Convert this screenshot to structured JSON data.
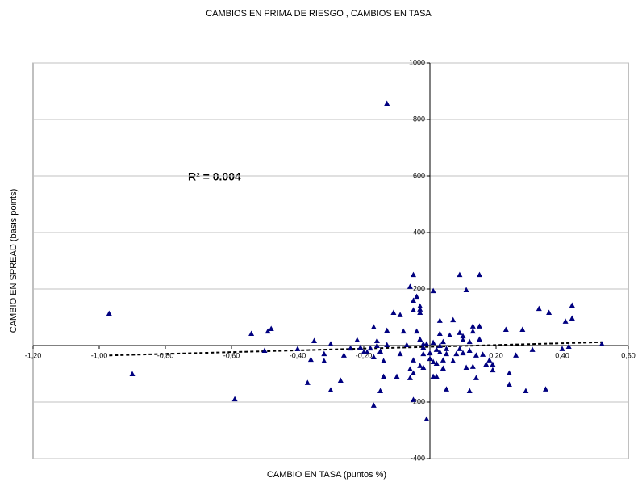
{
  "chart_data": {
    "type": "scatter",
    "title": "CAMBIOS EN PRIMA DE RIESGO , CAMBIOS EN TASA",
    "x_label": "CAMBIO EN TASA (puntos %)",
    "y_label": "CAMBIO EN SPREAD (basis points)",
    "annotation": "R² = 0.004",
    "color": "#000080",
    "grid": true,
    "xlim": [
      -1.2,
      0.6
    ],
    "ylim": [
      -400,
      1000
    ],
    "xticks": [
      {
        "value": -1.2,
        "label": "-1,20"
      },
      {
        "value": -1.0,
        "label": "-1,00"
      },
      {
        "value": -0.8,
        "label": "-0,80"
      },
      {
        "value": -0.6,
        "label": "-0,60"
      },
      {
        "value": -0.4,
        "label": "-0,40"
      },
      {
        "value": -0.2,
        "label": "-0,20"
      },
      {
        "value": 0.2,
        "label": "0,20"
      },
      {
        "value": 0.4,
        "label": "0,40"
      },
      {
        "value": 0.6,
        "label": "0,60"
      }
    ],
    "yticks": [
      1000,
      800,
      600,
      400,
      200,
      -200,
      -400
    ],
    "trendline": {
      "x": [
        -0.97,
        0.52
      ],
      "y": [
        -35,
        12
      ]
    },
    "x": [
      -0.97,
      -0.9,
      -0.59,
      -0.54,
      -0.5,
      -0.49,
      -0.48,
      -0.4,
      -0.36,
      -0.35,
      -0.37,
      -0.32,
      -0.32,
      -0.3,
      -0.3,
      -0.27,
      -0.26,
      -0.24,
      -0.22,
      -0.21,
      -0.2,
      -0.19,
      -0.18,
      -0.17,
      -0.17,
      -0.17,
      -0.16,
      -0.16,
      -0.15,
      -0.15,
      -0.14,
      -0.13,
      -0.13,
      -0.13,
      -0.14,
      -0.11,
      -0.1,
      -0.09,
      -0.09,
      -0.08,
      -0.07,
      -0.06,
      -0.05,
      -0.05,
      -0.05,
      -0.06,
      -0.05,
      -0.06,
      -0.05,
      -0.05,
      -0.04,
      -0.04,
      -0.03,
      -0.03,
      -0.03,
      -0.03,
      -0.03,
      -0.02,
      -0.02,
      -0.02,
      -0.02,
      -0.01,
      -0.01,
      0.0,
      0.0,
      0.01,
      0.01,
      0.01,
      0.01,
      0.02,
      0.02,
      0.02,
      0.03,
      0.03,
      0.03,
      0.03,
      0.04,
      0.04,
      0.04,
      0.05,
      0.05,
      0.05,
      0.06,
      0.07,
      0.07,
      0.08,
      0.09,
      0.09,
      0.09,
      0.1,
      0.1,
      0.1,
      0.11,
      0.11,
      0.12,
      0.12,
      0.12,
      0.13,
      0.13,
      0.13,
      0.14,
      0.14,
      0.15,
      0.15,
      0.15,
      0.16,
      0.17,
      0.18,
      0.19,
      0.19,
      0.23,
      0.24,
      0.24,
      0.26,
      0.28,
      0.29,
      0.31,
      0.33,
      0.35,
      0.36,
      0.4,
      0.41,
      0.42,
      0.43,
      0.43,
      0.52
    ],
    "values": [
      114,
      -100,
      -189,
      43,
      -17,
      51,
      60,
      -11,
      -49,
      17,
      -131,
      -29,
      -54,
      6,
      -157,
      -123,
      -34,
      -9,
      20,
      -6,
      -23,
      -23,
      -9,
      -40,
      66,
      -211,
      17,
      0,
      -20,
      -160,
      -109,
      857,
      3,
      54,
      -54,
      117,
      -109,
      109,
      -29,
      51,
      3,
      209,
      160,
      251,
      126,
      -83,
      -97,
      -114,
      -191,
      -51,
      51,
      174,
      140,
      23,
      -71,
      117,
      129,
      -77,
      6,
      -6,
      -29,
      6,
      -260,
      -26,
      -46,
      194,
      -109,
      11,
      -57,
      -14,
      -109,
      -63,
      -23,
      89,
      43,
      0,
      -51,
      -80,
      14,
      -11,
      -154,
      -29,
      37,
      -54,
      91,
      -29,
      -11,
      251,
      46,
      -26,
      20,
      34,
      197,
      -77,
      -17,
      -160,
      14,
      51,
      -74,
      69,
      -34,
      -114,
      23,
      251,
      69,
      -31,
      -66,
      -51,
      -66,
      -86,
      57,
      -97,
      -137,
      -34,
      57,
      -160,
      -14,
      131,
      -154,
      117,
      -11,
      86,
      -3,
      143,
      97,
      6
    ]
  }
}
